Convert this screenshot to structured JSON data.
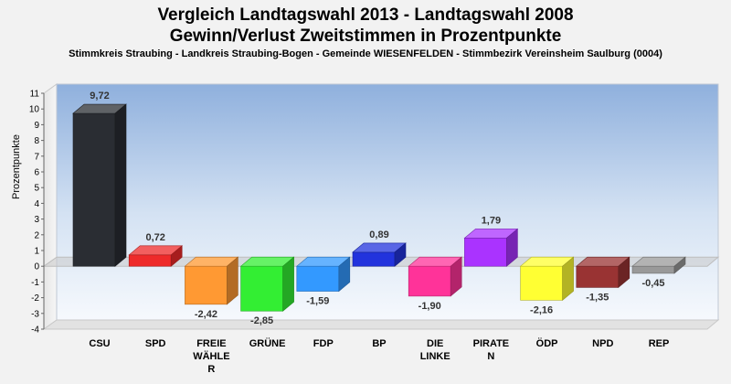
{
  "chart_data": {
    "type": "bar",
    "title_line1": "Vergleich Landtagswahl 2013 - Landtagswahl 2008",
    "title_line2": "Gewinn/Verlust Zweitstimmen in Prozentpunkte",
    "subtitle": "Stimmkreis Straubing - Landkreis Straubing-Bogen - Gemeinde WIESENFELDEN - Stimmbezirk Vereinsheim Saulburg (0004)",
    "ylabel": "Prozentpunkte",
    "ylim": [
      -4,
      11
    ],
    "yticks": [
      "11",
      "10",
      "9",
      "8",
      "7",
      "6",
      "5",
      "4",
      "3",
      "2",
      "1",
      "0",
      "-1",
      "-2",
      "-3",
      "-4"
    ],
    "categories": [
      {
        "lines": [
          "CSU"
        ]
      },
      {
        "lines": [
          "SPD"
        ]
      },
      {
        "lines": [
          "FREIE",
          "WÄHLE",
          "R"
        ]
      },
      {
        "lines": [
          "GRÜNE"
        ]
      },
      {
        "lines": [
          "FDP"
        ]
      },
      {
        "lines": [
          "BP"
        ]
      },
      {
        "lines": [
          "DIE",
          "LINKE"
        ]
      },
      {
        "lines": [
          "PIRATE",
          "N"
        ]
      },
      {
        "lines": [
          "ÖDP"
        ]
      },
      {
        "lines": [
          "NPD"
        ]
      },
      {
        "lines": [
          "REP"
        ]
      }
    ],
    "values": [
      9.72,
      0.72,
      -2.42,
      -2.85,
      -1.59,
      0.89,
      -1.9,
      1.79,
      -2.16,
      -1.35,
      -0.45
    ],
    "value_labels": [
      "9,72",
      "0,72",
      "-2,42",
      "-2,85",
      "-1,59",
      "0,89",
      "-1,90",
      "1,79",
      "-2,16",
      "-1,35",
      "-0,45"
    ],
    "colors": [
      "#2a2d33",
      "#ee2a2a",
      "#ff9933",
      "#33ee33",
      "#3399ff",
      "#2233dd",
      "#ff3399",
      "#aa33ff",
      "#ffff33",
      "#993333",
      "#999999"
    ],
    "grid": false,
    "legend": "none"
  }
}
